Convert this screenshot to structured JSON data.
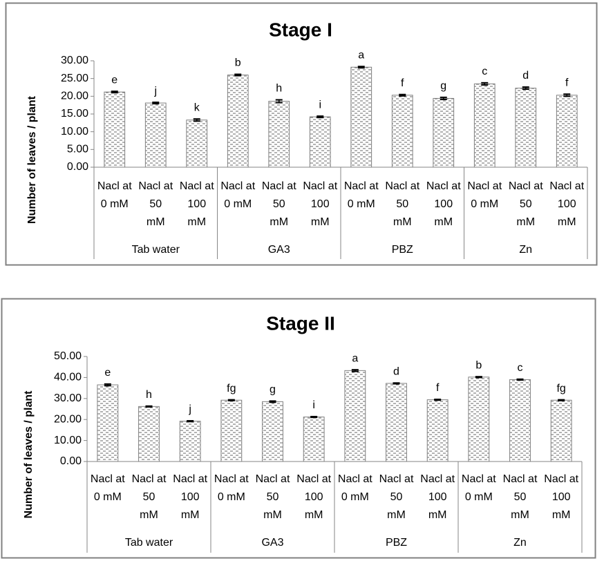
{
  "chart_data": [
    {
      "type": "bar",
      "title": "Stage I",
      "y_label": "Number of leaves / plant",
      "groups": [
        "Tab water",
        "GA3",
        "PBZ",
        "Zn"
      ],
      "categories": [
        [
          "Nacl at",
          "0 mM"
        ],
        [
          "Nacl at",
          "50",
          "mM"
        ],
        [
          "Nacl at",
          "100",
          "mM"
        ],
        [
          "Nacl at",
          "0 mM"
        ],
        [
          "Nacl at",
          "50",
          "mM"
        ],
        [
          "Nacl at",
          "100",
          "mM"
        ],
        [
          "Nacl at",
          "0 mM"
        ],
        [
          "Nacl at",
          "50",
          "mM"
        ],
        [
          "Nacl at",
          "100",
          "mM"
        ],
        [
          "Nacl at",
          "0 mM"
        ],
        [
          "Nacl at",
          "50",
          "mM"
        ],
        [
          "Nacl at",
          "100",
          "mM"
        ]
      ],
      "values": [
        21.2,
        18.1,
        13.3,
        26.0,
        18.6,
        14.2,
        28.2,
        20.3,
        19.4,
        23.5,
        22.3,
        20.3
      ],
      "errors": [
        0.2,
        0.2,
        0.3,
        0.2,
        0.4,
        0.2,
        0.2,
        0.2,
        0.3,
        0.3,
        0.3,
        0.3
      ],
      "value_labels": [
        "e",
        "j",
        "k",
        "b",
        "h",
        "i",
        "a",
        "f",
        "g",
        "c",
        "d",
        "f"
      ],
      "color": "#7f7f7f",
      "ylim": [
        0,
        30
      ],
      "yticks": [
        {
          "value": 0,
          "label": "0.00"
        },
        {
          "value": 5,
          "label": "5.00"
        },
        {
          "value": 10,
          "label": "10.00"
        },
        {
          "value": 15,
          "label": "15.00"
        },
        {
          "value": 20,
          "label": "20.00"
        },
        {
          "value": 25,
          "label": "25.00"
        },
        {
          "value": 30,
          "label": "30.00"
        }
      ],
      "grid": false
    },
    {
      "type": "bar",
      "title": "Stage II",
      "y_label": "Number of leaves / plant",
      "groups": [
        "Tab water",
        "GA3",
        "PBZ",
        "Zn"
      ],
      "categories": [
        [
          "Nacl at",
          "0 mM"
        ],
        [
          "Nacl at",
          "50",
          "mM"
        ],
        [
          "Nacl at",
          "100",
          "mM"
        ],
        [
          "Nacl at",
          "0 mM"
        ],
        [
          "Nacl at",
          "50",
          "mM"
        ],
        [
          "Nacl at",
          "100",
          "mM"
        ],
        [
          "Nacl at",
          "0 mM"
        ],
        [
          "Nacl at",
          "50",
          "mM"
        ],
        [
          "Nacl at",
          "100",
          "mM"
        ],
        [
          "Nacl at",
          "0 mM"
        ],
        [
          "Nacl at",
          "50",
          "mM"
        ],
        [
          "Nacl at",
          "100",
          "mM"
        ]
      ],
      "values": [
        36.5,
        26.2,
        19.2,
        29.2,
        28.5,
        21.2,
        43.3,
        37.2,
        29.4,
        40.2,
        39.0,
        29.2
      ],
      "errors": [
        0.4,
        0.2,
        0.2,
        0.2,
        0.3,
        0.2,
        0.4,
        0.2,
        0.2,
        0.2,
        0.2,
        0.2
      ],
      "value_labels": [
        "e",
        "h",
        "j",
        "fg",
        "g",
        "i",
        "a",
        "d",
        "f",
        "b",
        "c",
        "fg"
      ],
      "color": "#7f7f7f",
      "ylim": [
        0,
        50
      ],
      "yticks": [
        {
          "value": 0,
          "label": "0.00"
        },
        {
          "value": 10,
          "label": "10.00"
        },
        {
          "value": 20,
          "label": "20.00"
        },
        {
          "value": 30,
          "label": "30.00"
        },
        {
          "value": 40,
          "label": "40.00"
        },
        {
          "value": 50,
          "label": "50.00"
        }
      ],
      "grid": false
    }
  ]
}
